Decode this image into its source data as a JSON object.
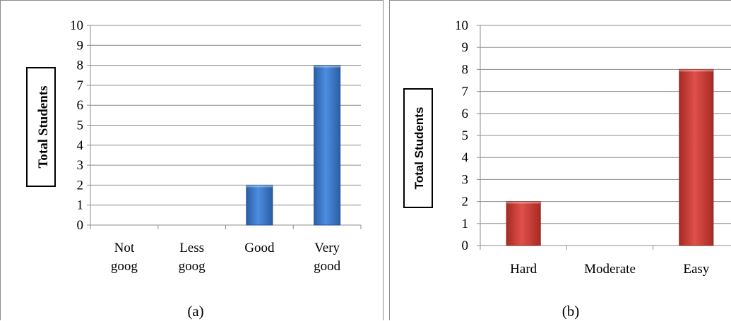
{
  "chart_data": [
    {
      "type": "bar",
      "caption": "(a)",
      "ylabel": "Total Students",
      "xlabel": "",
      "ylim": [
        0,
        10
      ],
      "yticks": [
        "0",
        "1",
        "2",
        "3",
        "4",
        "5",
        "6",
        "7",
        "8",
        "9",
        "10"
      ],
      "categories": [
        [
          "Not",
          "goog"
        ],
        [
          "Less",
          "goog"
        ],
        [
          "Good"
        ],
        [
          "Very",
          "good"
        ]
      ],
      "values": [
        0,
        0,
        2,
        8
      ],
      "bar_color": "#3c78c8",
      "grid": true
    },
    {
      "type": "bar",
      "caption": "(b)",
      "ylabel": "Total Students",
      "xlabel": "",
      "ylim": [
        0,
        10
      ],
      "yticks": [
        "0",
        "1",
        "2",
        "3",
        "4",
        "5",
        "6",
        "7",
        "8",
        "9",
        "10"
      ],
      "categories": [
        [
          "Hard"
        ],
        [
          "Moderate"
        ],
        [
          "Easy"
        ]
      ],
      "values": [
        2,
        0,
        8
      ],
      "bar_color": "#c83c32",
      "grid": true
    }
  ]
}
